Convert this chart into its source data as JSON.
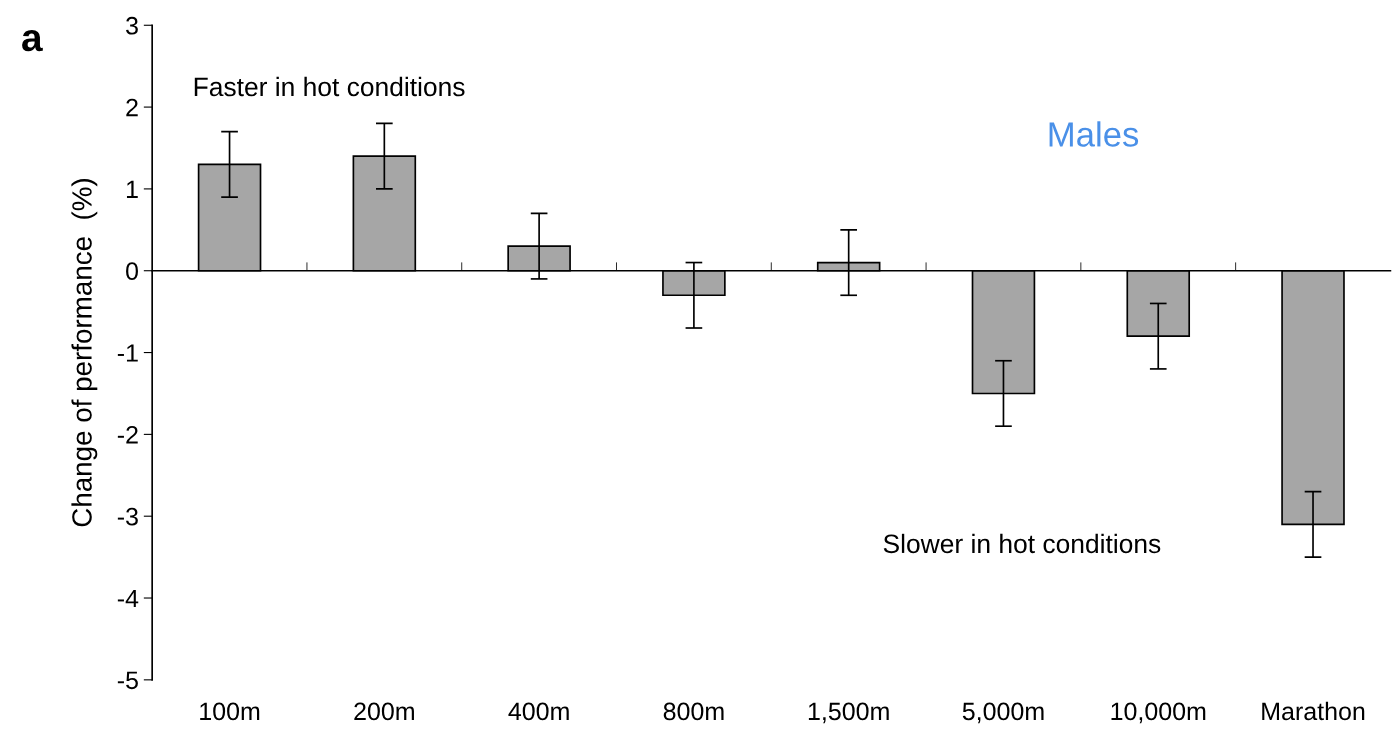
{
  "chart_data": {
    "type": "bar",
    "ylabel": "Change of performance  (%)",
    "categories": [
      "100m",
      "200m",
      "400m",
      "800m",
      "1,500m",
      "5,000m",
      "10,000m",
      "Marathon"
    ],
    "values": [
      1.3,
      1.4,
      0.3,
      -0.3,
      0.1,
      -1.5,
      -0.8,
      -3.1
    ],
    "errors": [
      0.4,
      0.4,
      0.4,
      0.4,
      0.4,
      0.4,
      0.4,
      0.4
    ],
    "color": "#a6a6a6",
    "ylim": [
      -5,
      3
    ],
    "yticks": [
      -5,
      -4,
      -3,
      -2,
      -1,
      0,
      1,
      2,
      3
    ],
    "annotations": [
      "a",
      "Faster in hot conditions",
      "Males",
      "Slower in hot conditions"
    ]
  }
}
